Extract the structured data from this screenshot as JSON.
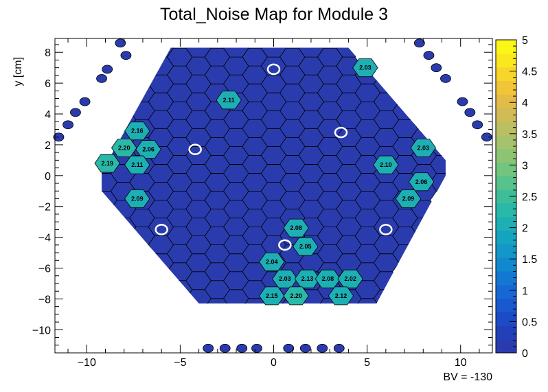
{
  "chart_data": {
    "type": "heatmap",
    "title": "Total_Noise Map for Module 3",
    "xlabel": "",
    "ylabel": "y [cm]",
    "note": "BV = -130",
    "xlim": [
      -11.7,
      11.7
    ],
    "ylim": [
      -11.5,
      8.9
    ],
    "xticks": [
      -10,
      -5,
      0,
      5,
      10
    ],
    "yticks": [
      -10,
      -8,
      -6,
      -4,
      -2,
      0,
      2,
      4,
      6,
      8
    ],
    "zlim": [
      0,
      5
    ],
    "zticks": [
      0,
      0.5,
      1,
      1.5,
      2,
      2.5,
      3,
      3.5,
      4,
      4.5,
      5
    ],
    "zticks_labels": [
      "0",
      "0.5",
      "1",
      "1.5",
      "2",
      "2.5",
      "3",
      "3.5",
      "4",
      "4.5",
      "5"
    ],
    "palette": [
      "#2a3cad",
      "#2340b8",
      "#1d4bc6",
      "#1a58cf",
      "#1767d4",
      "#1478d3",
      "#1288cf",
      "#1396c8",
      "#15a4c0",
      "#1dafb4",
      "#2ab8a8",
      "#3dbe99",
      "#58c28a",
      "#72c47f",
      "#8dc474",
      "#a5c26c",
      "#bcbe62",
      "#d1bb57",
      "#e3bb48",
      "#f2c437",
      "#f8d52a",
      "#fbe71e",
      "#fbf617"
    ],
    "background_value": 0.2,
    "labeled_cells": [
      {
        "x": 4.9,
        "y": 7.0,
        "value": 2.03,
        "label": "2.03"
      },
      {
        "x": -2.4,
        "y": 4.9,
        "value": 2.11,
        "label": "2.11"
      },
      {
        "x": -7.3,
        "y": 2.9,
        "value": 2.16,
        "label": "2.16"
      },
      {
        "x": -8.0,
        "y": 1.8,
        "value": 2.2,
        "label": "2.20"
      },
      {
        "x": -6.7,
        "y": 1.7,
        "value": 2.06,
        "label": "2.06"
      },
      {
        "x": -8.9,
        "y": 0.8,
        "value": 2.19,
        "label": "2.19"
      },
      {
        "x": -7.3,
        "y": 0.7,
        "value": 2.11,
        "label": "2.11"
      },
      {
        "x": 8.0,
        "y": 1.8,
        "value": 2.03,
        "label": "2.03"
      },
      {
        "x": 6.0,
        "y": 0.7,
        "value": 2.1,
        "label": "2.10"
      },
      {
        "x": 7.9,
        "y": -0.4,
        "value": 2.06,
        "label": "2.06"
      },
      {
        "x": -7.3,
        "y": -1.5,
        "value": 2.09,
        "label": "2.09"
      },
      {
        "x": 7.2,
        "y": -1.5,
        "value": 2.09,
        "label": "2.09"
      },
      {
        "x": 1.2,
        "y": -3.4,
        "value": 2.08,
        "label": "2.08"
      },
      {
        "x": 1.7,
        "y": -4.6,
        "value": 2.05,
        "label": "2.05"
      },
      {
        "x": -0.1,
        "y": -5.6,
        "value": 2.04,
        "label": "2.04"
      },
      {
        "x": 0.6,
        "y": -6.7,
        "value": 2.03,
        "label": "2.03"
      },
      {
        "x": 1.8,
        "y": -6.7,
        "value": 2.13,
        "label": "2.13"
      },
      {
        "x": 2.9,
        "y": -6.7,
        "value": 2.08,
        "label": "2.08"
      },
      {
        "x": 4.1,
        "y": -6.7,
        "value": 2.02,
        "label": "2.02"
      },
      {
        "x": -0.1,
        "y": -7.8,
        "value": 2.15,
        "label": "2.15"
      },
      {
        "x": 1.2,
        "y": -7.8,
        "value": 2.2,
        "label": "2.20"
      },
      {
        "x": 3.6,
        "y": -7.8,
        "value": 2.12,
        "label": "2.12"
      }
    ],
    "calibration_cells": [
      {
        "x": 0.0,
        "y": 6.9
      },
      {
        "x": 3.6,
        "y": 2.8
      },
      {
        "x": -4.2,
        "y": 1.7
      },
      {
        "x": -6.0,
        "y": -3.5
      },
      {
        "x": 6.0,
        "y": -3.5
      },
      {
        "x": 0.6,
        "y": -4.5
      }
    ],
    "edge_points": [
      {
        "x": -8.2,
        "y": 8.6
      },
      {
        "x": -7.9,
        "y": 7.8
      },
      {
        "x": -8.9,
        "y": 6.9
      },
      {
        "x": -9.2,
        "y": 6.3
      },
      {
        "x": -10.1,
        "y": 4.8
      },
      {
        "x": -10.6,
        "y": 4.1
      },
      {
        "x": -11.0,
        "y": 3.3
      },
      {
        "x": -11.5,
        "y": 2.5
      },
      {
        "x": 7.8,
        "y": 8.6
      },
      {
        "x": 8.3,
        "y": 7.8
      },
      {
        "x": 8.7,
        "y": 7.0
      },
      {
        "x": 9.2,
        "y": 6.3
      },
      {
        "x": 10.1,
        "y": 4.8
      },
      {
        "x": 10.5,
        "y": 4.1
      },
      {
        "x": 10.9,
        "y": 3.3
      },
      {
        "x": 11.4,
        "y": 2.5
      },
      {
        "x": -3.5,
        "y": -11.2
      },
      {
        "x": -2.6,
        "y": -11.2
      },
      {
        "x": -1.7,
        "y": -11.2
      },
      {
        "x": -0.9,
        "y": -11.2
      },
      {
        "x": 0.8,
        "y": -11.2
      },
      {
        "x": 1.7,
        "y": -11.2
      },
      {
        "x": 2.6,
        "y": -11.2
      },
      {
        "x": 3.5,
        "y": -11.2
      }
    ]
  }
}
